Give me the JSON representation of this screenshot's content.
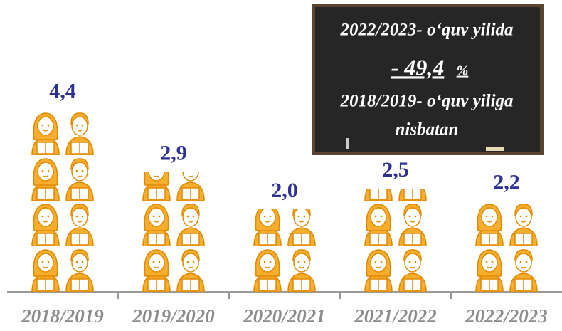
{
  "chart_data": {
    "type": "bar",
    "categories": [
      "2018/2019",
      "2019/2020",
      "2020/2021",
      "2021/2022",
      "2022/2023"
    ],
    "values": [
      4.4,
      2.9,
      2.0,
      2.5,
      2.2
    ],
    "value_labels": [
      "4,4",
      "2,9",
      "2,0",
      "2,5",
      "2,2"
    ],
    "color": "#f7ad2e",
    "annotations": [
      "2022/2023- o‘quv yilida",
      "- 49,4",
      "%",
      "2018/2019- o‘quv yiliga",
      "nisbatan"
    ]
  }
}
